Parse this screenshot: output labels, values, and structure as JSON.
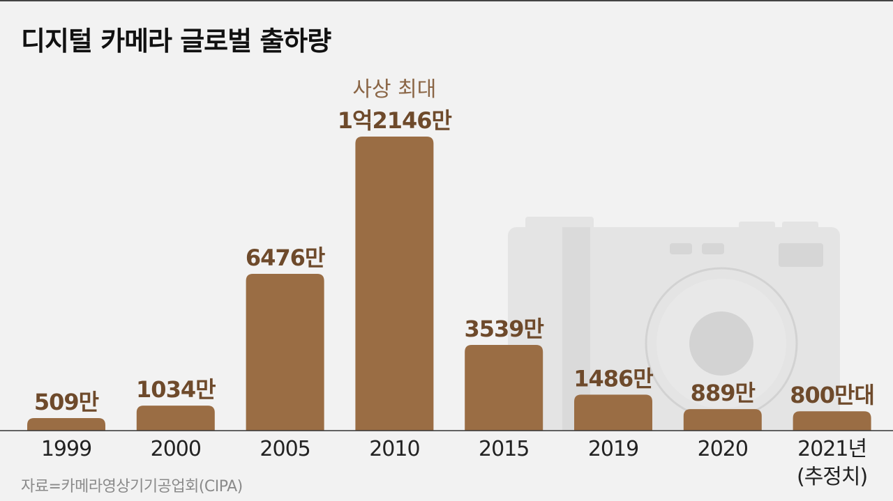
{
  "title": "디지털 카메라 글로벌 출하량",
  "source": "자료=카메라영상기기공업회(CIPA)",
  "colors": {
    "bar": "#9a6d44",
    "value_label": "#6e4a2b",
    "annotation": "#8a6545",
    "camera_decoration": "#e4e4e4",
    "background": "#f2f2f2"
  },
  "decoration": "camera-icon",
  "chart_data": {
    "type": "bar",
    "title": "디지털 카메라 글로벌 출하량",
    "categories": [
      "1999",
      "2000",
      "2005",
      "2010",
      "2015",
      "2019",
      "2020",
      "2021년"
    ],
    "category_sublabels": [
      "",
      "",
      "",
      "",
      "",
      "",
      "",
      "(추정치)"
    ],
    "values": [
      509,
      1034,
      6476,
      12146,
      3539,
      1486,
      889,
      800
    ],
    "unit": "만",
    "data_labels": [
      "509만",
      "1034만",
      "6476만",
      "1억2146만",
      "3539만",
      "1486만",
      "889만",
      "800만대"
    ],
    "annotations": [
      {
        "category": "2010",
        "text": "사상 최대"
      }
    ],
    "ylim": [
      0,
      12500
    ],
    "grid": false,
    "legend": "none"
  }
}
